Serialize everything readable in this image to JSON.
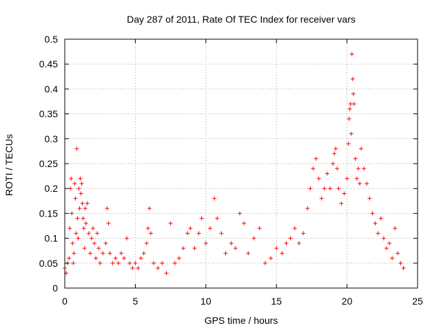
{
  "chart_data": {
    "type": "scatter",
    "title": "Day 287 of 2011, Rate Of TEC Index for receiver vars",
    "xlabel": "GPS time / hours",
    "ylabel": "ROTI / TECUs",
    "xlim": [
      0,
      25
    ],
    "ylim": [
      0,
      0.5
    ],
    "x_ticks": [
      "0",
      "5",
      "10",
      "15",
      "20",
      "25"
    ],
    "y_ticks": [
      "0",
      "0.05",
      "0.1",
      "0.15",
      "0.2",
      "0.25",
      "0.3",
      "0.35",
      "0.4",
      "0.45",
      "0.5"
    ],
    "x_tick_values": [
      0,
      5,
      10,
      15,
      20,
      25
    ],
    "y_tick_values": [
      0,
      0.05,
      0.1,
      0.15,
      0.2,
      0.25,
      0.3,
      0.35,
      0.4,
      0.45,
      0.5
    ],
    "grid": true,
    "marker": "plus",
    "color": "#ff0000",
    "points": [
      [
        0.0,
        0.04
      ],
      [
        0.1,
        0.03
      ],
      [
        0.2,
        0.05
      ],
      [
        0.3,
        0.06
      ],
      [
        0.35,
        0.12
      ],
      [
        0.4,
        0.2
      ],
      [
        0.45,
        0.22
      ],
      [
        0.5,
        0.15
      ],
      [
        0.55,
        0.09
      ],
      [
        0.6,
        0.05
      ],
      [
        0.65,
        0.07
      ],
      [
        0.7,
        0.21
      ],
      [
        0.75,
        0.18
      ],
      [
        0.8,
        0.11
      ],
      [
        0.85,
        0.28
      ],
      [
        0.9,
        0.14
      ],
      [
        0.95,
        0.1
      ],
      [
        1.0,
        0.2
      ],
      [
        1.05,
        0.16
      ],
      [
        1.1,
        0.22
      ],
      [
        1.15,
        0.19
      ],
      [
        1.2,
        0.21
      ],
      [
        1.25,
        0.17
      ],
      [
        1.3,
        0.14
      ],
      [
        1.35,
        0.12
      ],
      [
        1.4,
        0.08
      ],
      [
        1.45,
        0.16
      ],
      [
        1.5,
        0.13
      ],
      [
        1.6,
        0.17
      ],
      [
        1.7,
        0.11
      ],
      [
        1.8,
        0.07
      ],
      [
        1.9,
        0.1
      ],
      [
        2.0,
        0.12
      ],
      [
        2.1,
        0.09
      ],
      [
        2.2,
        0.06
      ],
      [
        2.3,
        0.11
      ],
      [
        2.4,
        0.08
      ],
      [
        2.5,
        0.05
      ],
      [
        2.7,
        0.07
      ],
      [
        2.9,
        0.09
      ],
      [
        3.0,
        0.16
      ],
      [
        3.1,
        0.13
      ],
      [
        3.2,
        0.07
      ],
      [
        3.4,
        0.05
      ],
      [
        3.6,
        0.06
      ],
      [
        3.8,
        0.05
      ],
      [
        4.0,
        0.07
      ],
      [
        4.2,
        0.06
      ],
      [
        4.4,
        0.1
      ],
      [
        4.6,
        0.05
      ],
      [
        4.8,
        0.04
      ],
      [
        5.0,
        0.05
      ],
      [
        5.2,
        0.04
      ],
      [
        5.4,
        0.06
      ],
      [
        5.6,
        0.07
      ],
      [
        5.8,
        0.09
      ],
      [
        5.9,
        0.12
      ],
      [
        6.0,
        0.16
      ],
      [
        6.1,
        0.11
      ],
      [
        6.3,
        0.05
      ],
      [
        6.6,
        0.04
      ],
      [
        6.9,
        0.05
      ],
      [
        7.2,
        0.03
      ],
      [
        7.5,
        0.13
      ],
      [
        7.8,
        0.05
      ],
      [
        8.1,
        0.06
      ],
      [
        8.4,
        0.08
      ],
      [
        8.7,
        0.11
      ],
      [
        8.9,
        0.12
      ],
      [
        9.2,
        0.08
      ],
      [
        9.5,
        0.11
      ],
      [
        9.7,
        0.14
      ],
      [
        10.0,
        0.09
      ],
      [
        10.3,
        0.12
      ],
      [
        10.6,
        0.18
      ],
      [
        10.8,
        0.14
      ],
      [
        11.1,
        0.11
      ],
      [
        11.4,
        0.07
      ],
      [
        11.8,
        0.09
      ],
      [
        12.1,
        0.08
      ],
      [
        12.4,
        0.15
      ],
      [
        12.7,
        0.13
      ],
      [
        13.0,
        0.07
      ],
      [
        13.4,
        0.1
      ],
      [
        13.8,
        0.12
      ],
      [
        14.2,
        0.05
      ],
      [
        14.6,
        0.06
      ],
      [
        15.0,
        0.08
      ],
      [
        15.4,
        0.07
      ],
      [
        15.7,
        0.09
      ],
      [
        16.0,
        0.1
      ],
      [
        16.3,
        0.12
      ],
      [
        16.6,
        0.09
      ],
      [
        16.9,
        0.11
      ],
      [
        17.2,
        0.16
      ],
      [
        17.4,
        0.2
      ],
      [
        17.6,
        0.24
      ],
      [
        17.8,
        0.26
      ],
      [
        18.0,
        0.22
      ],
      [
        18.2,
        0.18
      ],
      [
        18.4,
        0.2
      ],
      [
        18.6,
        0.23
      ],
      [
        18.8,
        0.2
      ],
      [
        19.0,
        0.25
      ],
      [
        19.1,
        0.27
      ],
      [
        19.2,
        0.28
      ],
      [
        19.3,
        0.24
      ],
      [
        19.4,
        0.2
      ],
      [
        19.6,
        0.17
      ],
      [
        19.8,
        0.19
      ],
      [
        20.0,
        0.22
      ],
      [
        20.1,
        0.29
      ],
      [
        20.15,
        0.34
      ],
      [
        20.2,
        0.36
      ],
      [
        20.25,
        0.37
      ],
      [
        20.3,
        0.31
      ],
      [
        20.35,
        0.47
      ],
      [
        20.4,
        0.42
      ],
      [
        20.45,
        0.39
      ],
      [
        20.5,
        0.37
      ],
      [
        20.6,
        0.26
      ],
      [
        20.7,
        0.22
      ],
      [
        20.8,
        0.24
      ],
      [
        20.9,
        0.21
      ],
      [
        21.0,
        0.28
      ],
      [
        21.2,
        0.24
      ],
      [
        21.4,
        0.21
      ],
      [
        21.6,
        0.18
      ],
      [
        21.8,
        0.15
      ],
      [
        22.0,
        0.13
      ],
      [
        22.2,
        0.11
      ],
      [
        22.4,
        0.14
      ],
      [
        22.6,
        0.1
      ],
      [
        22.8,
        0.08
      ],
      [
        23.0,
        0.09
      ],
      [
        23.2,
        0.06
      ],
      [
        23.4,
        0.12
      ],
      [
        23.6,
        0.07
      ],
      [
        23.8,
        0.05
      ],
      [
        24.0,
        0.04
      ]
    ]
  }
}
